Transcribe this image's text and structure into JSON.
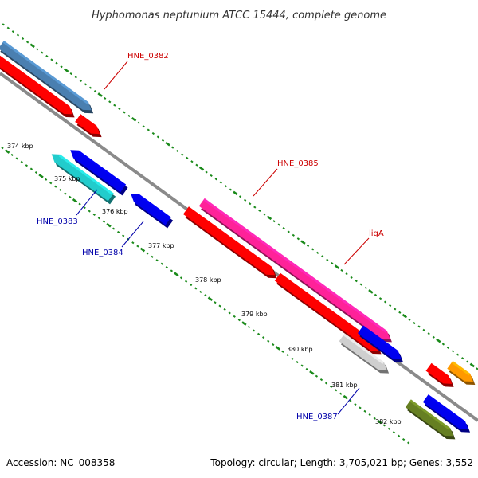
{
  "title": "Hyphomonas neptunium ATCC 15444, complete genome",
  "footer": {
    "accession": "Accession: NC_008358",
    "topology": "Topology: circular; Length: 3,705,021 bp; Genes: 3,552"
  },
  "ticks": [
    "374 kbp",
    "375 kbp",
    "376 kbp",
    "377 kbp",
    "378 kbp",
    "379 kbp",
    "380 kbp",
    "381 kbp",
    "382 kbp"
  ],
  "gene_labels": [
    {
      "text": "HNE_0382",
      "color": "#cc0000"
    },
    {
      "text": "HNE_0383",
      "color": "#0000aa"
    },
    {
      "text": "HNE_0384",
      "color": "#0000aa"
    },
    {
      "text": "HNE_0385",
      "color": "#cc0000"
    },
    {
      "text": "ligA",
      "color": "#cc0000"
    },
    {
      "text": "HNE_0387",
      "color": "#0000aa"
    }
  ],
  "colors": {
    "backbone": "#8a8a8a",
    "dots": "#1a8a1a",
    "steelblue": "#4a7fb0",
    "red": "#ff0000",
    "blue": "#0000ee",
    "cyan": "#22cccc",
    "magenta": "#ff2299",
    "gray": "#cfcfcf",
    "orange": "#ff9900",
    "olive": "#667f22"
  }
}
